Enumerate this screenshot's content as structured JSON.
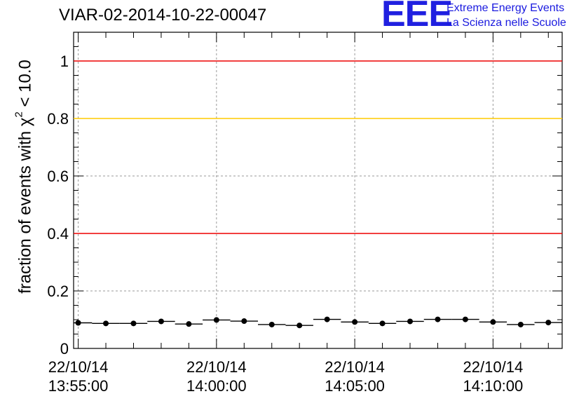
{
  "chart_data": {
    "type": "scatter",
    "title": "VIAR-02-2014-10-22-00047",
    "ylabel_prefix": "fraction of events with χ",
    "ylabel_sup": "2",
    "ylabel_suffix": " < 10.0",
    "xlabel": "",
    "ylim": [
      0,
      1.1
    ],
    "x_ticks": [
      {
        "line1": "22/10/14",
        "line2": "13:55:00"
      },
      {
        "line1": "22/10/14",
        "line2": "14:00:00"
      },
      {
        "line1": "22/10/14",
        "line2": "14:05:00"
      },
      {
        "line1": "22/10/14",
        "line2": "14:10:00"
      }
    ],
    "y_ticks": [
      "0",
      "0.2",
      "0.4",
      "0.6",
      "0.8",
      "1"
    ],
    "y_tick_values": [
      0,
      0.2,
      0.4,
      0.6,
      0.8,
      1
    ],
    "x_range": [
      "22/10/14 13:54:50",
      "22/10/14 14:12:30"
    ],
    "bin_width_seconds": 60,
    "grid": true,
    "reference_lines": [
      {
        "y": 1.0,
        "color": "#ee0000"
      },
      {
        "y": 0.8,
        "color": "#ffcc00"
      },
      {
        "y": 0.4,
        "color": "#ee0000"
      }
    ],
    "x": [
      "13:55:00",
      "13:56:00",
      "13:57:00",
      "13:58:00",
      "13:59:00",
      "14:00:00",
      "14:01:00",
      "14:02:00",
      "14:03:00",
      "14:04:00",
      "14:05:00",
      "14:06:00",
      "14:07:00",
      "14:08:00",
      "14:09:00",
      "14:10:00",
      "14:11:00",
      "14:12:00"
    ],
    "values": [
      0.089,
      0.087,
      0.087,
      0.094,
      0.085,
      0.099,
      0.095,
      0.083,
      0.08,
      0.101,
      0.092,
      0.087,
      0.094,
      0.101,
      0.101,
      0.092,
      0.083,
      0.09
    ]
  },
  "logo": {
    "mark": "EEE",
    "line1": "Extreme Energy Events",
    "line2": "La Scienza nelle Scuole",
    "color": "#2020e0"
  }
}
